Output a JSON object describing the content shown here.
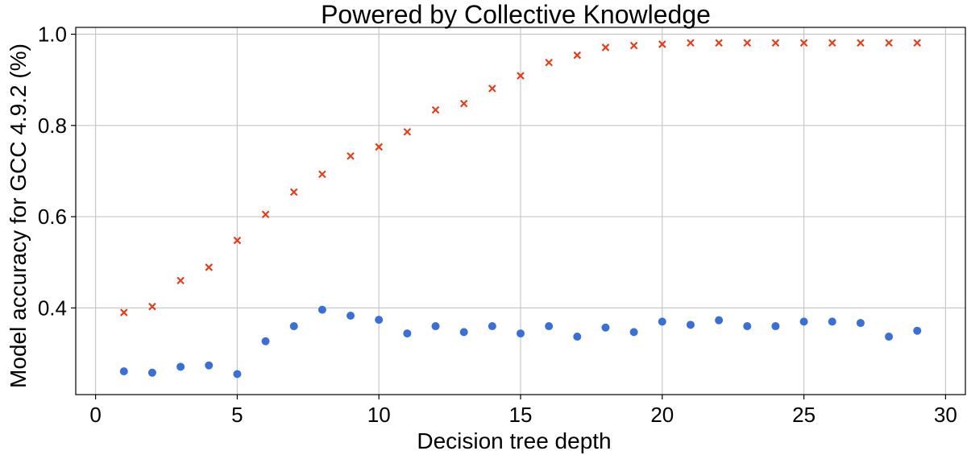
{
  "chart_data": {
    "type": "scatter",
    "title": "Powered by Collective Knowledge",
    "xlabel": "Decision tree depth",
    "ylabel": "Model accuracy for GCC 4.9.2 (%)",
    "xlim": [
      -0.7,
      30.7
    ],
    "ylim": [
      0.21,
      1.015
    ],
    "xticks": [
      0,
      5,
      10,
      15,
      20,
      25,
      30
    ],
    "yticks": [
      0.4,
      0.6,
      0.8,
      1.0
    ],
    "ytick_labels": [
      "0.4",
      "0.6",
      "0.8",
      "1.0"
    ],
    "grid": true,
    "legend": false,
    "series": [
      {
        "marker": "x",
        "color": "#e0401e",
        "x": [
          1,
          2,
          3,
          4,
          5,
          6,
          7,
          8,
          9,
          10,
          11,
          12,
          13,
          14,
          15,
          16,
          17,
          18,
          19,
          20,
          21,
          22,
          23,
          24,
          25,
          26,
          27,
          28,
          29
        ],
        "y": [
          0.39,
          0.403,
          0.46,
          0.489,
          0.548,
          0.605,
          0.654,
          0.693,
          0.733,
          0.753,
          0.786,
          0.834,
          0.848,
          0.881,
          0.909,
          0.938,
          0.954,
          0.971,
          0.975,
          0.978,
          0.981,
          0.981,
          0.981,
          0.981,
          0.981,
          0.981,
          0.981,
          0.981,
          0.981
        ]
      },
      {
        "marker": "o",
        "color": "#3b6fd4",
        "x": [
          1,
          2,
          3,
          4,
          5,
          6,
          7,
          8,
          9,
          10,
          11,
          12,
          13,
          14,
          15,
          16,
          17,
          18,
          19,
          20,
          21,
          22,
          23,
          24,
          25,
          26,
          27,
          28,
          29
        ],
        "y": [
          0.261,
          0.258,
          0.271,
          0.274,
          0.255,
          0.327,
          0.36,
          0.396,
          0.383,
          0.374,
          0.344,
          0.36,
          0.347,
          0.36,
          0.344,
          0.36,
          0.337,
          0.357,
          0.347,
          0.37,
          0.363,
          0.373,
          0.36,
          0.36,
          0.37,
          0.37,
          0.367,
          0.337,
          0.35
        ]
      }
    ]
  }
}
